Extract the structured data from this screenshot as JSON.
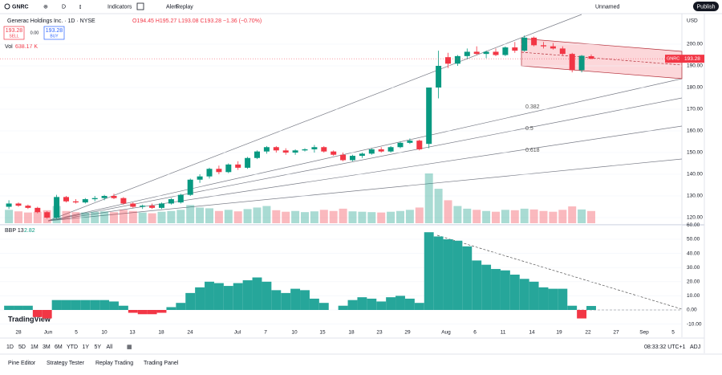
{
  "toolbar": {
    "symbol": "GNRC",
    "interval": "D",
    "indicators": "Indicators",
    "alert": "Alert",
    "replay": "Replay",
    "layout": "Unnamed",
    "publish": "Publish"
  },
  "legend": {
    "name": "Generac Holdings Inc. · 1D · NYSE",
    "ohlc": [
      "O194.45",
      "H195.27",
      "L193.08",
      "C193.28",
      "−1.36 (−0.70%)"
    ],
    "sell_price": "193.28",
    "sell": "SELL",
    "spread": "0.00",
    "buy_price": "193.28",
    "buy": "BUY",
    "volume": "Vol",
    "volume_value": "638.17 K",
    "indicator": "BBP 13",
    "indicator_value": "2.82"
  },
  "chart_data": [
    {
      "type": "candlestick",
      "up_color": "#089981",
      "down_color": "#f23645",
      "candles": [
        [
          125,
          128,
          124,
          126.5
        ],
        [
          126.5,
          127,
          125,
          125.5
        ],
        [
          125.5,
          126,
          124,
          124.5
        ],
        [
          124.5,
          125,
          122,
          122.5
        ],
        [
          122.5,
          123,
          119.5,
          120
        ],
        [
          120,
          130.5,
          119.5,
          129.5
        ],
        [
          129.5,
          130,
          127,
          127.5
        ],
        [
          127.5,
          128.5,
          126.5,
          127
        ],
        [
          127,
          129,
          126.5,
          128.5
        ],
        [
          128.5,
          130,
          127.5,
          129
        ],
        [
          129,
          130.5,
          128,
          130
        ],
        [
          130,
          131,
          128.5,
          129
        ],
        [
          129,
          129.5,
          126,
          126.5
        ],
        [
          126.5,
          127,
          124.5,
          125
        ],
        [
          125,
          126,
          124,
          125.5
        ],
        [
          125.5,
          126.5,
          124,
          124.5
        ],
        [
          124.5,
          127,
          124,
          126.5
        ],
        [
          126.5,
          129,
          126,
          128.5
        ],
        [
          127,
          131,
          126.5,
          130.5
        ],
        [
          130.5,
          138,
          130,
          137.5
        ],
        [
          137.5,
          140,
          136,
          139
        ],
        [
          139,
          143,
          138,
          142.5
        ],
        [
          142.5,
          144,
          140,
          141
        ],
        [
          141,
          145,
          140.5,
          144.5
        ],
        [
          144.5,
          146,
          142,
          143
        ],
        [
          143,
          148,
          142.5,
          147.5
        ],
        [
          147.5,
          151,
          147,
          150.5
        ],
        [
          150.5,
          153,
          149.5,
          152.5
        ],
        [
          152.5,
          153,
          150,
          151
        ],
        [
          151,
          152,
          149,
          150
        ],
        [
          150,
          151.5,
          149,
          151
        ],
        [
          151,
          152,
          150.5,
          151.5
        ],
        [
          151.5,
          153.5,
          150,
          152.5
        ],
        [
          152.5,
          153,
          150,
          150.5
        ],
        [
          150.5,
          151,
          148.5,
          149
        ],
        [
          149,
          150,
          146,
          146.5
        ],
        [
          146.5,
          149,
          146,
          148.5
        ],
        [
          148.5,
          150,
          147.5,
          149.5
        ],
        [
          149.5,
          152,
          149,
          151.5
        ],
        [
          151.5,
          152.5,
          150,
          150.5
        ],
        [
          150.5,
          153,
          150,
          152.5
        ],
        [
          152.5,
          155,
          152,
          154.5
        ],
        [
          154.5,
          156.5,
          154,
          155.5
        ],
        [
          155.5,
          156,
          151,
          151.5
        ],
        [
          154,
          180,
          152,
          180
        ],
        [
          180,
          197,
          175,
          190
        ],
        [
          194,
          196,
          189,
          191
        ],
        [
          191,
          195,
          190,
          194.5
        ],
        [
          194.5,
          198,
          193,
          196.5
        ],
        [
          196.5,
          199,
          195,
          195.5
        ],
        [
          195.5,
          197,
          193.5,
          196.5
        ],
        [
          196.5,
          198,
          194.5,
          195
        ],
        [
          195,
          199,
          194.5,
          198.5
        ],
        [
          198.5,
          201,
          196,
          197
        ],
        [
          197,
          204,
          196.5,
          203
        ],
        [
          203,
          203.5,
          199,
          199.5
        ],
        [
          199.5,
          201,
          198,
          199
        ],
        [
          199,
          200.5,
          197.5,
          198
        ],
        [
          198,
          199,
          195,
          195.5
        ],
        [
          195.5,
          196,
          187,
          188
        ],
        [
          188,
          195,
          187,
          194.64
        ],
        [
          194.45,
          195.27,
          193.08,
          193.28
        ]
      ],
      "volume": [
        700,
        620,
        560,
        600,
        680,
        900,
        640,
        580,
        560,
        600,
        620,
        580,
        700,
        640,
        560,
        520,
        600,
        640,
        700,
        950,
        820,
        780,
        640,
        700,
        620,
        740,
        820,
        900,
        680,
        600,
        640,
        580,
        620,
        700,
        640,
        760,
        620,
        600,
        580,
        560,
        600,
        640,
        700,
        820,
        2600,
        1800,
        1200,
        900,
        760,
        700,
        640,
        600,
        700,
        680,
        760,
        720,
        640,
        600,
        700,
        880,
        720,
        638.17
      ],
      "yticks": [
        {
          "value": 120,
          "label": "120.00"
        },
        {
          "value": 130,
          "label": "130.00"
        },
        {
          "value": 140,
          "label": "140.00"
        },
        {
          "value": 150,
          "label": "150.00"
        },
        {
          "value": 160,
          "label": "160.00"
        },
        {
          "value": 170,
          "label": "170.00"
        },
        {
          "value": 180,
          "label": "180.00"
        },
        {
          "value": 190,
          "label": "190.00"
        },
        {
          "value": 200,
          "label": "200.00"
        }
      ],
      "currency": "USD",
      "last_price": {
        "value": 193.28,
        "label": "193.28"
      },
      "symbol_tag": "GNRC",
      "fib_labels": [
        "0.382",
        "0.5",
        "0.618"
      ]
    },
    {
      "type": "bar",
      "up_color": "#26a69a",
      "down_color": "#f23645",
      "values": [
        3,
        3,
        3,
        -5,
        -6,
        7,
        7,
        7,
        7,
        7,
        7,
        6,
        3,
        -2,
        -3,
        -3,
        -2,
        2,
        5,
        12,
        16,
        20,
        19,
        17,
        19,
        21,
        23,
        20,
        14,
        12,
        15,
        14,
        8,
        5,
        0,
        3,
        7,
        9,
        8,
        6,
        9,
        10,
        8,
        5,
        55,
        52,
        50,
        49,
        45,
        35,
        32,
        29,
        28,
        25,
        22,
        20,
        16,
        15,
        15,
        3,
        -6,
        2.82
      ],
      "yticks": [
        {
          "value": -10,
          "label": "-10.00"
        },
        {
          "value": 0,
          "label": "0.00"
        },
        {
          "value": 10,
          "label": "10.00"
        },
        {
          "value": 20,
          "label": "20.00"
        },
        {
          "value": 30,
          "label": "30.00"
        },
        {
          "value": 40,
          "label": "40.00"
        },
        {
          "value": 50,
          "label": "50.00"
        },
        {
          "value": 60,
          "label": "60.00"
        }
      ]
    }
  ],
  "date_labels": [
    "28",
    "Jun",
    "5",
    "10",
    "13",
    "18",
    "24",
    "Jul",
    "7",
    "10",
    "15",
    "18",
    "23",
    "29",
    "Aug",
    "6",
    "11",
    "14",
    "19",
    "22",
    "27",
    "Sep",
    "5"
  ],
  "logo": "TradingView",
  "timeframes": [
    "1D",
    "5D",
    "1M",
    "3M",
    "6M",
    "YTD",
    "1Y",
    "5Y",
    "All"
  ],
  "clock": "08:33:32 UTC+1",
  "adj": "ADJ",
  "tabs": [
    "Pine Editor",
    "Strategy Tester",
    "Replay Trading",
    "Trading Panel"
  ]
}
